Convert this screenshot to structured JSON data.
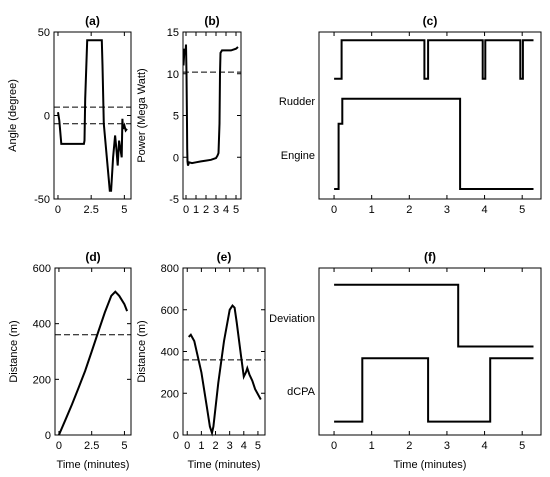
{
  "chart_data": [
    {
      "panel": "(a)",
      "type": "line",
      "title": "(a)",
      "xlabel": "",
      "ylabel": "Angle (degree)",
      "xlim": [
        -0.3,
        5.5
      ],
      "ylim": [
        -50,
        50
      ],
      "xticks": [
        0,
        2.5,
        5
      ],
      "xtick_labels": [
        "0",
        "2.5",
        "5"
      ],
      "yticks": [
        -50,
        0,
        50
      ],
      "ytick_labels": [
        "-50",
        "0",
        "50"
      ],
      "series": [
        {
          "style": "solid",
          "x": [
            0,
            0.1,
            0.25,
            1.95,
            2.0,
            2.05,
            2.2,
            3.3,
            3.35,
            3.45,
            3.9,
            4.0,
            4.15,
            4.3,
            4.4,
            4.5,
            4.6,
            4.7,
            4.8,
            4.85,
            4.9,
            5.0,
            5.1,
            5.2
          ],
          "y": [
            2,
            -3,
            -17,
            -17,
            -15,
            10,
            45,
            45,
            30,
            -5,
            -45,
            -45,
            -25,
            -12,
            -20,
            -30,
            -15,
            -20,
            -25,
            -2,
            -8,
            -6,
            -9,
            -8
          ]
        },
        {
          "style": "dashed",
          "x": [
            -0.3,
            5.5
          ],
          "y": [
            5,
            5
          ]
        },
        {
          "style": "dashed",
          "x": [
            -0.3,
            5.5
          ],
          "y": [
            -5,
            -5
          ]
        }
      ]
    },
    {
      "panel": "(b)",
      "type": "line",
      "title": "(b)",
      "xlabel": "",
      "ylabel": "Power (Mega Watt)",
      "xlim": [
        -0.3,
        5.5
      ],
      "ylim": [
        -5,
        15
      ],
      "xticks": [
        0,
        1,
        2,
        3,
        4,
        5
      ],
      "xtick_labels": [
        "0",
        "1",
        "2",
        "3",
        "4",
        "5"
      ],
      "yticks": [
        -5,
        0,
        5,
        10,
        15
      ],
      "ytick_labels": [
        "-5",
        "0",
        "5",
        "10",
        "15"
      ],
      "series": [
        {
          "style": "solid",
          "x": [
            -0.25,
            -0.15,
            -0.05,
            0.0,
            0.05,
            0.1,
            0.12,
            0.15,
            0.2,
            0.3,
            0.6,
            1.0,
            1.5,
            2.0,
            2.5,
            3.0,
            3.15,
            3.25,
            3.35,
            3.4,
            3.45,
            3.6,
            4.0,
            4.5,
            5.0,
            5.2
          ],
          "y": [
            11,
            13,
            12.5,
            13.5,
            10,
            4,
            1,
            -0.5,
            -1,
            -0.6,
            -0.7,
            -0.6,
            -0.5,
            -0.4,
            -0.3,
            -0.1,
            0.2,
            0.5,
            4,
            10,
            12.5,
            12.8,
            12.8,
            12.8,
            13,
            13.2
          ]
        },
        {
          "style": "dashed",
          "x": [
            -0.3,
            5.5
          ],
          "y": [
            10.2,
            10.2
          ]
        }
      ]
    },
    {
      "panel": "(c)",
      "type": "line",
      "title": "(c)",
      "xlabel": "",
      "ylabel": "",
      "xlim": [
        -0.4,
        5.5
      ],
      "ylim": [
        0,
        1
      ],
      "xticks": [
        0,
        1,
        2,
        3,
        4,
        5
      ],
      "xtick_labels": [
        "0",
        "1",
        "2",
        "3",
        "4",
        "5"
      ],
      "row_labels": [
        "Rudder",
        "Engine"
      ],
      "series": [
        {
          "name": "Rudder",
          "style": "solid",
          "x": [
            0,
            0.2,
            0.2,
            2.4,
            2.4,
            2.5,
            2.5,
            3.95,
            3.95,
            4.02,
            4.02,
            4.95,
            4.95,
            5.02,
            5.02,
            5.3
          ],
          "y": [
            0.72,
            0.72,
            0.95,
            0.95,
            0.72,
            0.72,
            0.95,
            0.95,
            0.72,
            0.72,
            0.95,
            0.95,
            0.72,
            0.72,
            0.95,
            0.95
          ]
        },
        {
          "name": "Engine",
          "style": "solid",
          "x": [
            0,
            0.12,
            0.12,
            0.22,
            0.22,
            3.35,
            3.35,
            5.3
          ],
          "y": [
            0.06,
            0.06,
            0.45,
            0.45,
            0.6,
            0.6,
            0.06,
            0.06
          ]
        }
      ]
    },
    {
      "panel": "(d)",
      "type": "line",
      "title": "(d)",
      "xlabel": "Time (minutes)",
      "ylabel": "Distance (m)",
      "xlim": [
        -0.3,
        5.5
      ],
      "ylim": [
        0,
        600
      ],
      "xticks": [
        0,
        2.5,
        5
      ],
      "xtick_labels": [
        "0",
        "2.5",
        "5"
      ],
      "yticks": [
        0,
        200,
        400,
        600
      ],
      "ytick_labels": [
        "0",
        "200",
        "400",
        "600"
      ],
      "series": [
        {
          "style": "solid",
          "x": [
            0,
            0.5,
            1,
            1.5,
            2,
            2.5,
            3,
            3.5,
            4,
            4.3,
            4.6,
            5,
            5.2
          ],
          "y": [
            0,
            55,
            110,
            170,
            230,
            300,
            370,
            440,
            500,
            515,
            500,
            470,
            445
          ]
        },
        {
          "style": "dashed",
          "x": [
            -0.3,
            5.5
          ],
          "y": [
            360,
            360
          ]
        }
      ]
    },
    {
      "panel": "(e)",
      "type": "line",
      "title": "(e)",
      "xlabel": "Time (minutes)",
      "ylabel": "Distance (m)",
      "xlim": [
        -0.3,
        5.5
      ],
      "ylim": [
        0,
        800
      ],
      "xticks": [
        0,
        1,
        2,
        3,
        4,
        5
      ],
      "xtick_labels": [
        "0",
        "1",
        "2",
        "3",
        "4",
        "5"
      ],
      "yticks": [
        0,
        200,
        400,
        600,
        800
      ],
      "ytick_labels": [
        "0",
        "200",
        "400",
        "600",
        "800"
      ],
      "series": [
        {
          "style": "solid",
          "x": [
            0.1,
            0.25,
            0.5,
            1.0,
            1.4,
            1.6,
            1.75,
            1.85,
            2.2,
            2.6,
            3.0,
            3.2,
            3.35,
            3.5,
            3.8,
            4.0,
            4.15,
            4.25,
            4.4,
            4.6,
            4.8,
            5.2
          ],
          "y": [
            470,
            480,
            450,
            300,
            130,
            40,
            10,
            40,
            250,
            450,
            600,
            620,
            610,
            540,
            380,
            280,
            300,
            320,
            290,
            260,
            220,
            170
          ]
        },
        {
          "style": "dashed",
          "x": [
            -0.3,
            5.5
          ],
          "y": [
            360,
            360
          ]
        }
      ]
    },
    {
      "panel": "(f)",
      "type": "line",
      "title": "(f)",
      "xlabel": "Time (minutes)",
      "ylabel": "",
      "xlim": [
        -0.4,
        5.5
      ],
      "ylim": [
        0,
        1
      ],
      "xticks": [
        0,
        1,
        2,
        3,
        4,
        5
      ],
      "xtick_labels": [
        "0",
        "1",
        "2",
        "3",
        "4",
        "5"
      ],
      "row_labels": [
        "Deviation",
        "dCPA"
      ],
      "series": [
        {
          "name": "Deviation",
          "style": "solid",
          "x": [
            0,
            3.3,
            3.3,
            5.3
          ],
          "y": [
            0.9,
            0.9,
            0.53,
            0.53
          ]
        },
        {
          "name": "dCPA",
          "style": "solid",
          "x": [
            0,
            0.75,
            0.75,
            2.5,
            2.5,
            4.15,
            4.15,
            5.3
          ],
          "y": [
            0.08,
            0.08,
            0.46,
            0.46,
            0.08,
            0.08,
            0.46,
            0.46
          ]
        }
      ]
    }
  ]
}
